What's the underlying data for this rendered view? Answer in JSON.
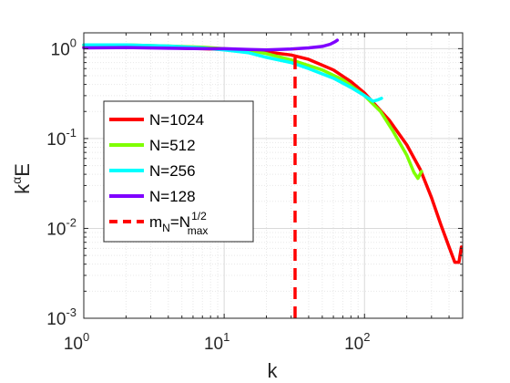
{
  "chart_data": {
    "type": "line",
    "xscale": "log",
    "yscale": "log",
    "xlim": [
      1,
      500
    ],
    "ylim": [
      0.001,
      1.5
    ],
    "grid": true,
    "legend_position": "left",
    "xlabel": "k",
    "ylabel_base": "k",
    "ylabel_sup": "α",
    "ylabel_tail": "E",
    "x_ticks": [
      {
        "value": 1,
        "base": "10",
        "exp": "0"
      },
      {
        "value": 10,
        "base": "10",
        "exp": "1"
      },
      {
        "value": 100,
        "base": "10",
        "exp": "2"
      }
    ],
    "y_ticks": [
      {
        "value": 0.001,
        "base": "10",
        "exp": "-3"
      },
      {
        "value": 0.01,
        "base": "10",
        "exp": "-2"
      },
      {
        "value": 0.1,
        "base": "10",
        "exp": "-1"
      },
      {
        "value": 1,
        "base": "10",
        "exp": "0"
      }
    ],
    "series": [
      {
        "name": "N=1024",
        "color": "#ff0000",
        "dash": false,
        "points": [
          [
            1,
            1.04
          ],
          [
            2,
            1.05
          ],
          [
            4,
            1.02
          ],
          [
            7,
            1.0
          ],
          [
            10,
            0.98
          ],
          [
            15,
            0.95
          ],
          [
            20,
            0.92
          ],
          [
            30,
            0.85
          ],
          [
            40,
            0.76
          ],
          [
            60,
            0.58
          ],
          [
            80,
            0.43
          ],
          [
            100,
            0.32
          ],
          [
            150,
            0.16
          ],
          [
            200,
            0.085
          ],
          [
            250,
            0.045
          ],
          [
            300,
            0.022
          ],
          [
            350,
            0.011
          ],
          [
            400,
            0.0062
          ],
          [
            440,
            0.0042
          ],
          [
            470,
            0.0042
          ],
          [
            490,
            0.0062
          ]
        ]
      },
      {
        "name": "N=512",
        "color": "#7fff00",
        "dash": false,
        "points": [
          [
            1,
            1.1
          ],
          [
            2,
            1.1
          ],
          [
            4,
            1.07
          ],
          [
            7,
            1.04
          ],
          [
            10,
            1.0
          ],
          [
            15,
            0.96
          ],
          [
            20,
            0.88
          ],
          [
            30,
            0.75
          ],
          [
            50,
            0.58
          ],
          [
            70,
            0.45
          ],
          [
            100,
            0.3
          ],
          [
            130,
            0.2
          ],
          [
            160,
            0.12
          ],
          [
            200,
            0.065
          ],
          [
            225,
            0.042
          ],
          [
            240,
            0.036
          ],
          [
            255,
            0.043
          ]
        ]
      },
      {
        "name": "N=256",
        "color": "#00ffff",
        "dash": false,
        "points": [
          [
            1,
            1.1
          ],
          [
            2,
            1.1
          ],
          [
            4,
            1.07
          ],
          [
            7,
            1.02
          ],
          [
            10,
            0.97
          ],
          [
            15,
            0.9
          ],
          [
            20,
            0.8
          ],
          [
            30,
            0.7
          ],
          [
            40,
            0.6
          ],
          [
            60,
            0.47
          ],
          [
            80,
            0.37
          ],
          [
            100,
            0.3
          ],
          [
            115,
            0.26
          ],
          [
            125,
            0.27
          ],
          [
            132,
            0.28
          ]
        ]
      },
      {
        "name": "N=128",
        "color": "#7f00ff",
        "dash": false,
        "points": [
          [
            1,
            1.02
          ],
          [
            2,
            1.03
          ],
          [
            4,
            1.01
          ],
          [
            7,
            1.0
          ],
          [
            10,
            1.0
          ],
          [
            15,
            0.98
          ],
          [
            20,
            0.97
          ],
          [
            30,
            0.99
          ],
          [
            40,
            1.02
          ],
          [
            50,
            1.06
          ],
          [
            57,
            1.12
          ],
          [
            62,
            1.2
          ],
          [
            64,
            1.24
          ]
        ]
      }
    ],
    "reference_line": {
      "name_base": "m",
      "name_sub": "N",
      "name_eq": "=N",
      "name_sup": "1/2",
      "name_sub2": "max",
      "color": "#ff0000",
      "dash": true,
      "x": 32,
      "y_range": [
        0.001,
        0.97
      ]
    }
  }
}
